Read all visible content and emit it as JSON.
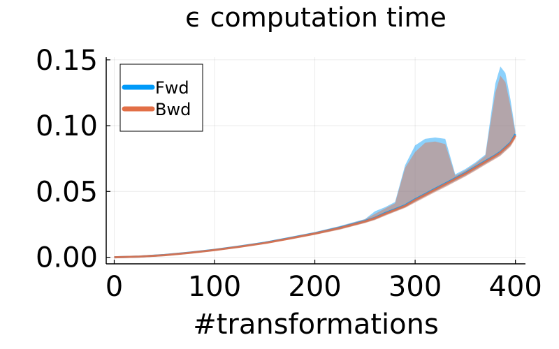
{
  "chart_data": {
    "type": "line",
    "title": "ϵ computation time",
    "xlabel": "#transformations",
    "ylabel": "",
    "xlim": [
      -8,
      410
    ],
    "ylim": [
      -0.005,
      0.152
    ],
    "xticks": [
      0,
      100,
      200,
      300,
      400
    ],
    "xtick_labels": [
      "0",
      "100",
      "200",
      "300",
      "400"
    ],
    "yticks": [
      0.0,
      0.05,
      0.1,
      0.15
    ],
    "ytick_labels": [
      "0.00",
      "0.05",
      "0.10",
      "0.15"
    ],
    "grid": true,
    "legend_position": "top-left",
    "x": [
      0,
      25,
      50,
      75,
      100,
      125,
      150,
      175,
      200,
      225,
      250,
      260,
      270,
      280,
      290,
      300,
      310,
      320,
      330,
      340,
      350,
      360,
      370,
      380,
      385,
      390,
      395,
      400
    ],
    "series": [
      {
        "name": "Fwd",
        "color": "#009af9",
        "values": [
          0.0,
          0.0005,
          0.0017,
          0.0035,
          0.0056,
          0.0082,
          0.011,
          0.0145,
          0.0182,
          0.0225,
          0.0275,
          0.03,
          0.0335,
          0.0365,
          0.0395,
          0.044,
          0.048,
          0.052,
          0.056,
          0.06,
          0.064,
          0.0685,
          0.073,
          0.0775,
          0.08,
          0.0835,
          0.087,
          0.0935
        ],
        "band_upper": [
          0.0,
          0.0007,
          0.002,
          0.004,
          0.0062,
          0.0088,
          0.0118,
          0.0155,
          0.0192,
          0.0238,
          0.029,
          0.035,
          0.038,
          0.042,
          0.07,
          0.085,
          0.09,
          0.091,
          0.09,
          0.063,
          0.067,
          0.072,
          0.078,
          0.132,
          0.145,
          0.14,
          0.12,
          0.096
        ],
        "band_lower": [
          0.0,
          0.0003,
          0.0014,
          0.003,
          0.005,
          0.0076,
          0.0103,
          0.0136,
          0.0172,
          0.0212,
          0.0262,
          0.0285,
          0.0318,
          0.0348,
          0.0378,
          0.042,
          0.046,
          0.05,
          0.0538,
          0.0578,
          0.0618,
          0.0662,
          0.0708,
          0.0752,
          0.0775,
          0.081,
          0.0845,
          0.091
        ]
      },
      {
        "name": "Bwd",
        "color": "#e26f46",
        "values": [
          0.0,
          0.0005,
          0.0016,
          0.0034,
          0.0055,
          0.008,
          0.0108,
          0.0143,
          0.018,
          0.0222,
          0.0272,
          0.0297,
          0.033,
          0.036,
          0.039,
          0.0435,
          0.0475,
          0.0515,
          0.0555,
          0.0595,
          0.0635,
          0.068,
          0.0725,
          0.077,
          0.0795,
          0.083,
          0.0865,
          0.0925
        ],
        "band_upper": [
          0.0,
          0.0007,
          0.0019,
          0.0039,
          0.006,
          0.0086,
          0.0116,
          0.0152,
          0.019,
          0.0235,
          0.0288,
          0.033,
          0.037,
          0.041,
          0.068,
          0.08,
          0.087,
          0.088,
          0.086,
          0.062,
          0.066,
          0.071,
          0.077,
          0.125,
          0.138,
          0.133,
          0.115,
          0.094
        ],
        "band_lower": [
          0.0,
          0.0003,
          0.0013,
          0.0029,
          0.0049,
          0.0074,
          0.0101,
          0.0134,
          0.017,
          0.021,
          0.026,
          0.0283,
          0.0315,
          0.0345,
          0.0375,
          0.0415,
          0.0455,
          0.0495,
          0.0533,
          0.0573,
          0.0613,
          0.0657,
          0.0703,
          0.0747,
          0.077,
          0.0805,
          0.084,
          0.09
        ]
      }
    ]
  }
}
